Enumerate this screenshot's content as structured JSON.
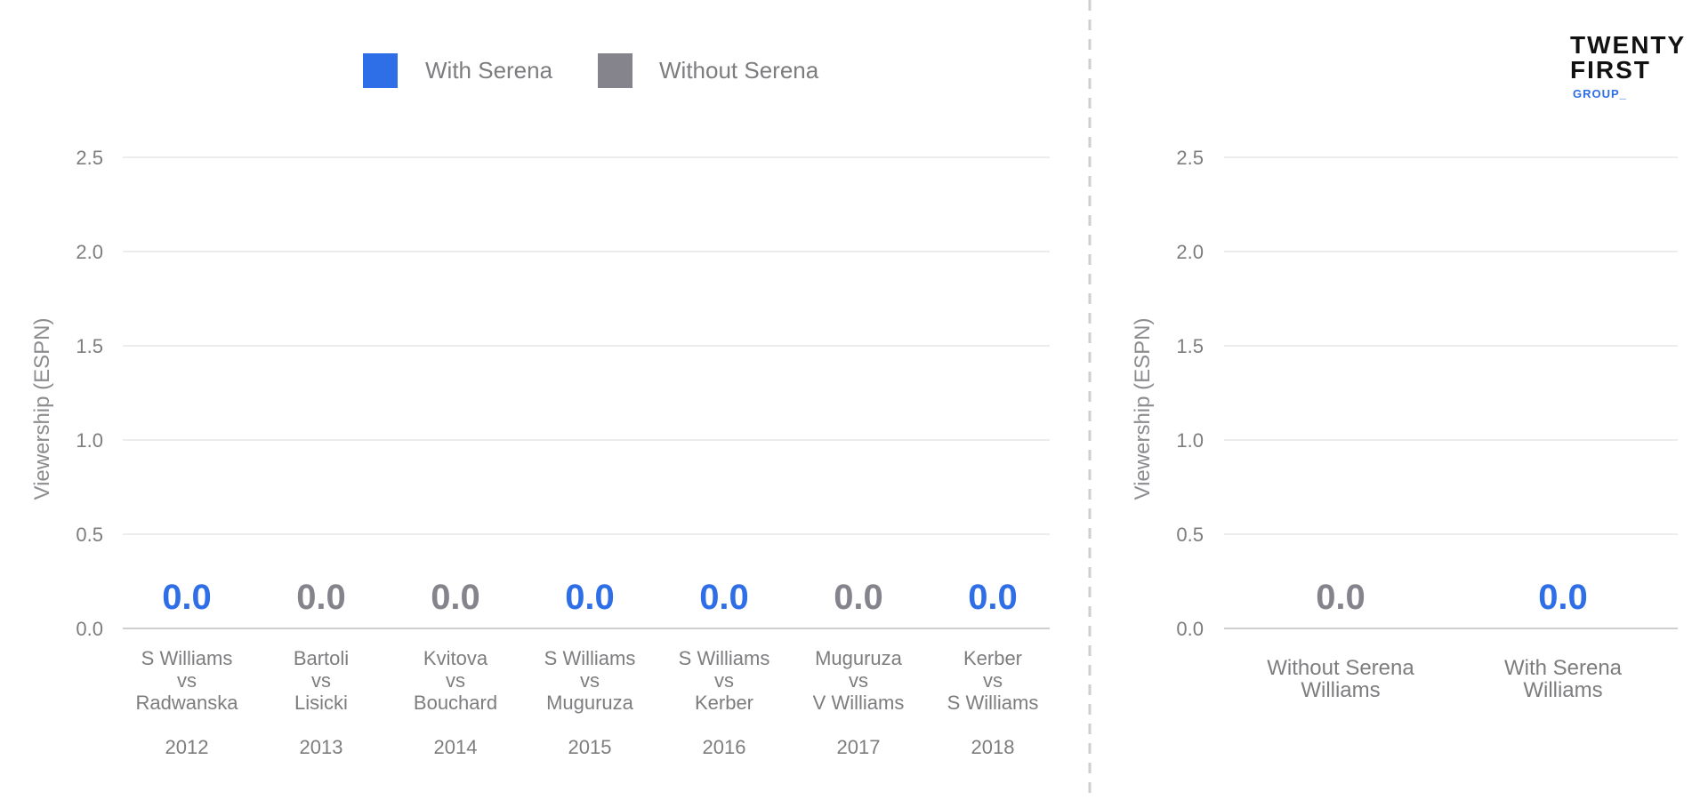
{
  "legend": {
    "with_label": "With Serena",
    "without_label": "Without Serena",
    "with_color": "#2e6ee6",
    "without_color": "#85848c"
  },
  "logo": {
    "line1": "TWENTY",
    "line2": "FIRST",
    "line3": "GROUP_"
  },
  "chart_data": [
    {
      "type": "bar",
      "ylabel": "Viewership (ESPN)",
      "ylim": [
        0,
        2.5
      ],
      "yticks": [
        "0.0",
        "0.5",
        "1.0",
        "1.5",
        "2.0",
        "2.5"
      ],
      "grid": true,
      "legend_position": "top",
      "categories": [
        {
          "lines": [
            "S Williams",
            "vs",
            "Radwanska"
          ],
          "year": "2012",
          "group": "with",
          "value": 0.0,
          "label": "0.0"
        },
        {
          "lines": [
            "Bartoli",
            "vs",
            "Lisicki"
          ],
          "year": "2013",
          "group": "without",
          "value": 0.0,
          "label": "0.0"
        },
        {
          "lines": [
            "Kvitova",
            "vs",
            "Bouchard"
          ],
          "year": "2014",
          "group": "without",
          "value": 0.0,
          "label": "0.0"
        },
        {
          "lines": [
            "S Williams",
            "vs",
            "Muguruza"
          ],
          "year": "2015",
          "group": "with",
          "value": 0.0,
          "label": "0.0"
        },
        {
          "lines": [
            "S Williams",
            "vs",
            "Kerber"
          ],
          "year": "2016",
          "group": "with",
          "value": 0.0,
          "label": "0.0"
        },
        {
          "lines": [
            "Muguruza",
            "vs",
            "V Williams"
          ],
          "year": "2017",
          "group": "without",
          "value": 0.0,
          "label": "0.0"
        },
        {
          "lines": [
            "Kerber",
            "vs",
            "S Williams"
          ],
          "year": "2018",
          "group": "with",
          "value": 0.0,
          "label": "0.0"
        }
      ]
    },
    {
      "type": "bar",
      "ylabel": "Viewership (ESPN)",
      "ylim": [
        0,
        2.5
      ],
      "yticks": [
        "0.0",
        "0.5",
        "1.0",
        "1.5",
        "2.0",
        "2.5"
      ],
      "grid": true,
      "categories": [
        {
          "lines": [
            "Without Serena",
            "Williams"
          ],
          "group": "without",
          "value": 0.0,
          "label": "0.0"
        },
        {
          "lines": [
            "With Serena",
            "Williams"
          ],
          "group": "with",
          "value": 0.0,
          "label": "0.0"
        }
      ]
    }
  ]
}
